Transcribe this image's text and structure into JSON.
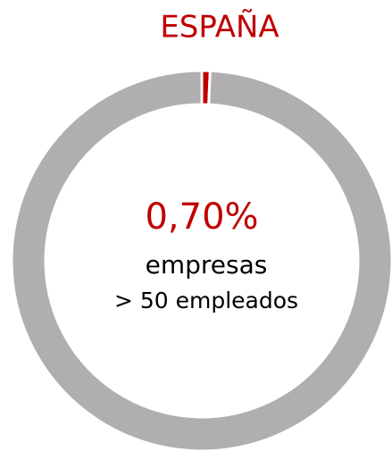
{
  "chart_data": {
    "type": "donut",
    "title": "ESPAÑA",
    "values": [
      0.7,
      99.3
    ],
    "value_labels": [
      "0,70%",
      null
    ],
    "colors": [
      "#c00000",
      "#b0aeae"
    ],
    "annotations": [
      "empresas",
      "> 50 empleados"
    ]
  }
}
